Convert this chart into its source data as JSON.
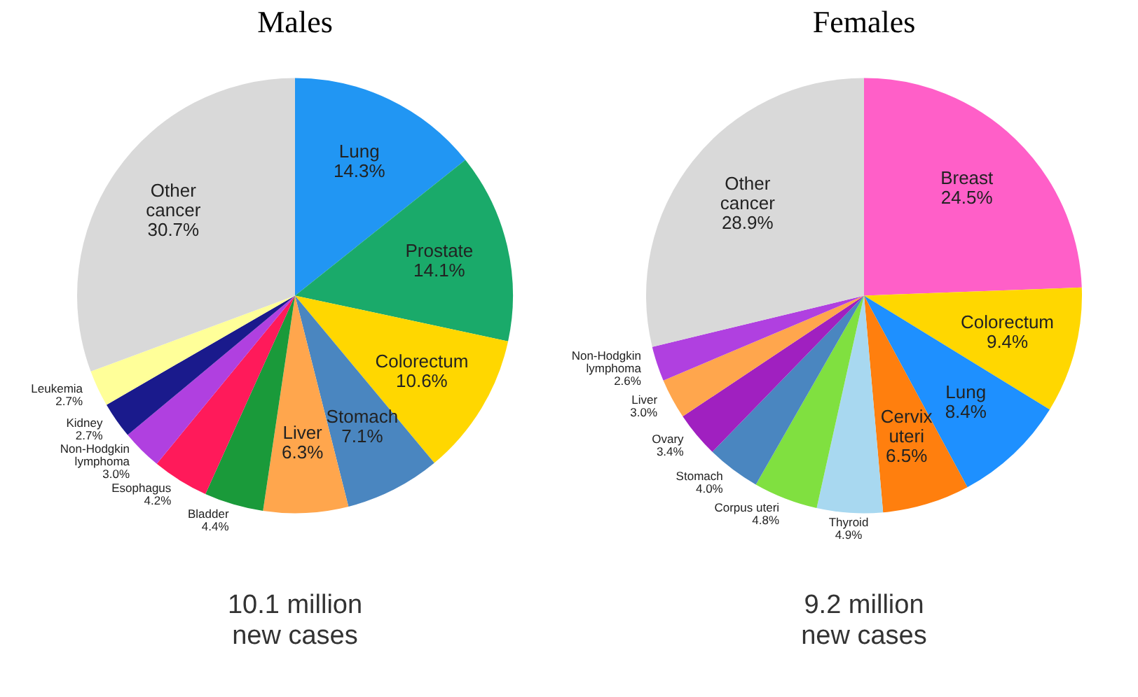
{
  "chart_data": [
    {
      "type": "pie",
      "title": "Males",
      "categories": [
        "Lung",
        "Prostate",
        "Colorectum",
        "Stomach",
        "Liver",
        "Bladder",
        "Esophagus",
        "Non-Hodgkin lymphoma",
        "Kidney",
        "Leukemia",
        "Other cancer"
      ],
      "values": [
        14.3,
        14.1,
        10.6,
        7.1,
        6.3,
        4.4,
        4.2,
        3.0,
        2.7,
        2.7,
        30.7
      ],
      "colors": [
        "#2196f3",
        "#1aaa6a",
        "#ffd700",
        "#4a86c0",
        "#ffa64d",
        "#1a9a3a",
        "#ff1a5a",
        "#b040e0",
        "#1a1a8c",
        "#ffff99",
        "#d9d9d9"
      ],
      "value_labels": [
        "14.3%",
        "14.1%",
        "10.6%",
        "7.1%",
        "6.3%",
        "4.4%",
        "4.2%",
        "3.0%",
        "2.7%",
        "2.7%",
        "30.7%"
      ],
      "annotations": [
        "10.1 million new cases"
      ],
      "legend": false
    },
    {
      "type": "pie",
      "title": "Females",
      "categories": [
        "Breast",
        "Colorectum",
        "Lung",
        "Cervix uteri",
        "Thyroid",
        "Corpus uteri",
        "Stomach",
        "Ovary",
        "Liver",
        "Non-Hodgkin lymphoma",
        "Other cancer"
      ],
      "values": [
        24.5,
        9.4,
        8.4,
        6.5,
        4.9,
        4.8,
        4.0,
        3.4,
        3.0,
        2.6,
        28.9
      ],
      "colors": [
        "#ff5fc8",
        "#ffd700",
        "#1e90ff",
        "#ff7f0e",
        "#a8d8f0",
        "#80e040",
        "#4a86c0",
        "#a020c0",
        "#ffa64d",
        "#b040e0",
        "#d9d9d9"
      ],
      "value_labels": [
        "24.5%",
        "9.4%",
        "8.4%",
        "6.5%",
        "4.9%",
        "4.8%",
        "4.0%",
        "3.4%",
        "3.0%",
        "2.6%",
        "28.9%"
      ],
      "annotations": [
        "9.2 million new cases"
      ],
      "legend": false
    }
  ]
}
